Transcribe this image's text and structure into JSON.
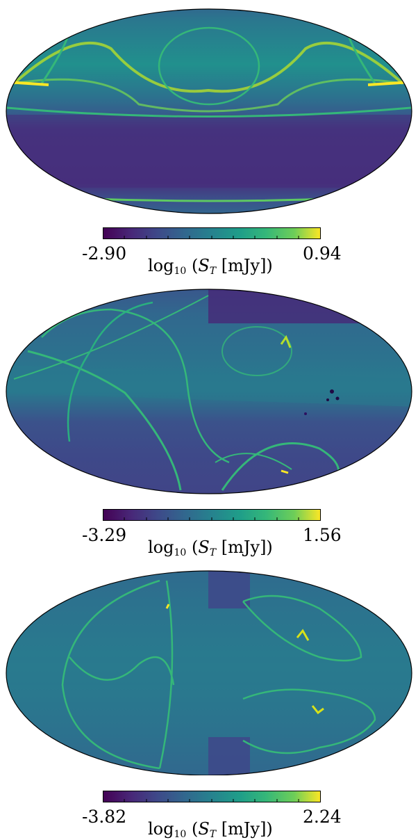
{
  "chart_data": [
    {
      "type": "heatmap",
      "projection": "mollweide",
      "colormap": "viridis",
      "colorbar": {
        "min_label": "-2.90",
        "max_label": "0.94",
        "min": -2.9,
        "max": 0.94,
        "label_prefix": "log",
        "label_sub": "10",
        "label_var": "S",
        "label_var_sub": "T",
        "label_unit": "[mJy])"
      }
    },
    {
      "type": "heatmap",
      "projection": "mollweide",
      "colormap": "viridis",
      "colorbar": {
        "min_label": "-3.29",
        "max_label": "1.56",
        "min": -3.29,
        "max": 1.56,
        "label_prefix": "log",
        "label_sub": "10",
        "label_var": "S",
        "label_var_sub": "T",
        "label_unit": "[mJy])"
      }
    },
    {
      "type": "heatmap",
      "projection": "mollweide",
      "colormap": "viridis",
      "colorbar": {
        "min_label": "-3.82",
        "max_label": "2.24",
        "min": -3.82,
        "max": 2.24,
        "label_prefix": "log",
        "label_sub": "10",
        "label_var": "S",
        "label_var_sub": "T",
        "label_unit": "[mJy])"
      }
    }
  ]
}
